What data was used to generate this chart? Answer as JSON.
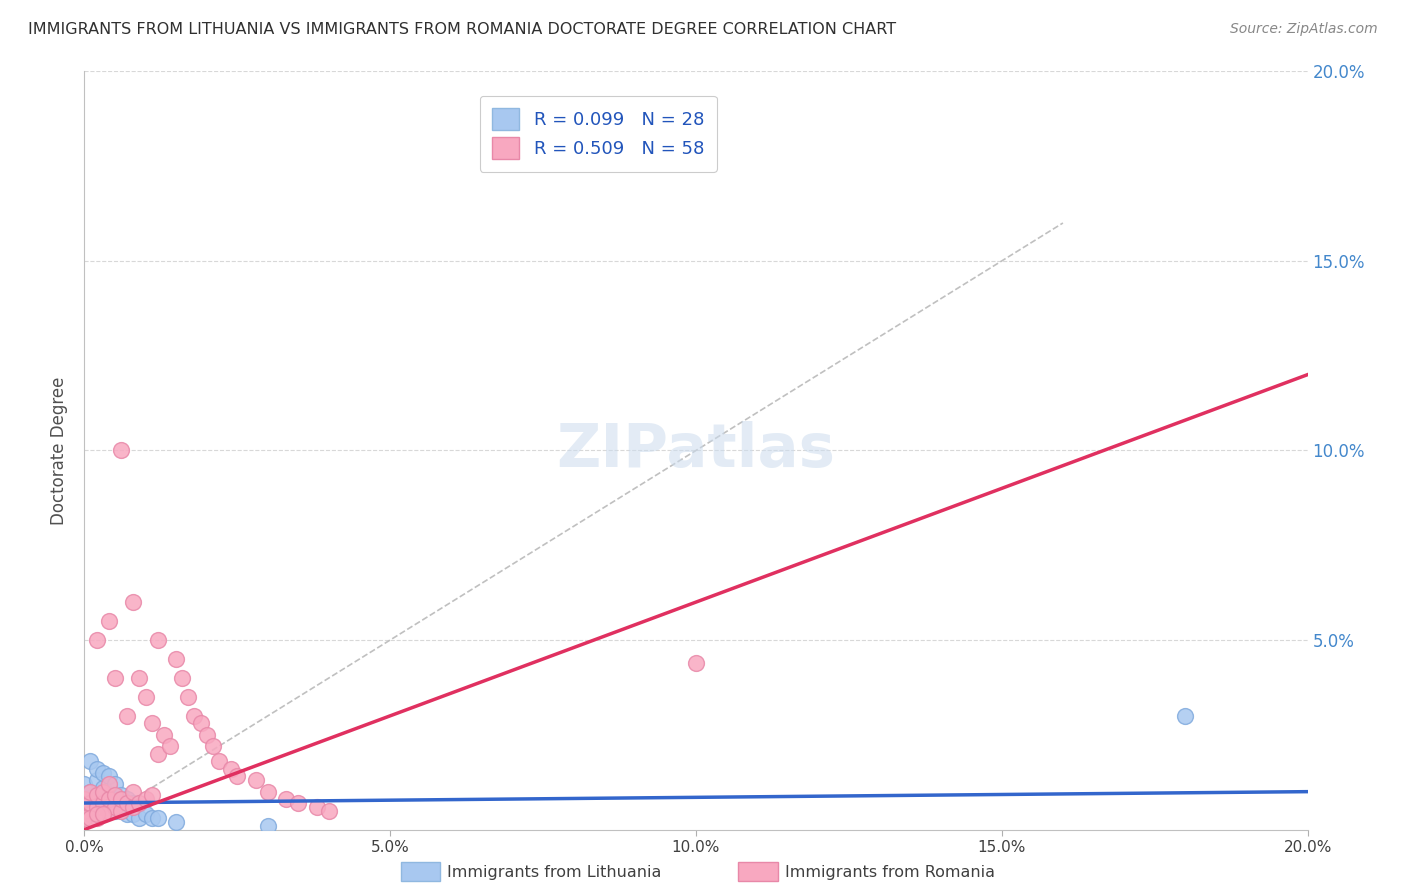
{
  "title": "IMMIGRANTS FROM LITHUANIA VS IMMIGRANTS FROM ROMANIA DOCTORATE DEGREE CORRELATION CHART",
  "source": "Source: ZipAtlas.com",
  "ylabel": "Doctorate Degree",
  "xlim": [
    0.0,
    0.2
  ],
  "ylim": [
    0.0,
    0.2
  ],
  "watermark": "ZIPatlas",
  "lithuania_color": "#a8c8f0",
  "romania_color": "#f8a8c0",
  "lithuania_line_color": "#3366cc",
  "romania_line_color": "#e03060",
  "diagonal_color": "#c0c0c0",
  "grid_color": "#d8d8d8",
  "title_color": "#303030",
  "tick_color_right": "#4488cc",
  "lith_x": [
    0.0,
    0.001,
    0.001,
    0.002,
    0.002,
    0.002,
    0.003,
    0.003,
    0.003,
    0.004,
    0.004,
    0.004,
    0.005,
    0.005,
    0.005,
    0.006,
    0.006,
    0.007,
    0.007,
    0.008,
    0.008,
    0.009,
    0.01,
    0.011,
    0.012,
    0.015,
    0.03,
    0.18
  ],
  "lith_y": [
    0.012,
    0.01,
    0.018,
    0.008,
    0.013,
    0.016,
    0.007,
    0.011,
    0.015,
    0.006,
    0.009,
    0.014,
    0.005,
    0.008,
    0.012,
    0.005,
    0.009,
    0.004,
    0.008,
    0.004,
    0.007,
    0.003,
    0.004,
    0.003,
    0.003,
    0.002,
    0.001,
    0.03
  ],
  "rom_x": [
    0.0,
    0.0,
    0.001,
    0.001,
    0.001,
    0.002,
    0.002,
    0.002,
    0.002,
    0.003,
    0.003,
    0.003,
    0.004,
    0.004,
    0.004,
    0.004,
    0.005,
    0.005,
    0.005,
    0.006,
    0.006,
    0.006,
    0.007,
    0.007,
    0.008,
    0.008,
    0.008,
    0.009,
    0.009,
    0.01,
    0.01,
    0.011,
    0.011,
    0.012,
    0.012,
    0.013,
    0.014,
    0.015,
    0.016,
    0.017,
    0.018,
    0.019,
    0.02,
    0.021,
    0.022,
    0.024,
    0.025,
    0.028,
    0.03,
    0.033,
    0.035,
    0.038,
    0.04,
    0.1,
    0.0,
    0.001,
    0.002,
    0.003
  ],
  "rom_y": [
    0.005,
    0.008,
    0.004,
    0.007,
    0.01,
    0.003,
    0.006,
    0.009,
    0.05,
    0.004,
    0.007,
    0.01,
    0.005,
    0.008,
    0.012,
    0.055,
    0.006,
    0.009,
    0.04,
    0.005,
    0.008,
    0.1,
    0.007,
    0.03,
    0.006,
    0.01,
    0.06,
    0.007,
    0.04,
    0.008,
    0.035,
    0.009,
    0.028,
    0.02,
    0.05,
    0.025,
    0.022,
    0.045,
    0.04,
    0.035,
    0.03,
    0.028,
    0.025,
    0.022,
    0.018,
    0.016,
    0.014,
    0.013,
    0.01,
    0.008,
    0.007,
    0.006,
    0.005,
    0.044,
    0.003,
    0.003,
    0.004,
    0.004
  ]
}
